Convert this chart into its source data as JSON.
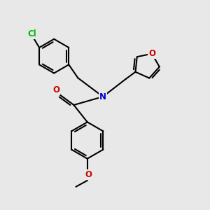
{
  "background_color": "#e8e8e8",
  "bond_color": "#000000",
  "atom_colors": {
    "Cl": "#00bb00",
    "O": "#cc0000",
    "N": "#0000cc",
    "C": "#000000"
  },
  "bond_width": 1.5,
  "figsize": [
    3.0,
    3.0
  ],
  "dpi": 100,
  "xlim": [
    0.0,
    10.0
  ],
  "ylim": [
    0.0,
    10.0
  ]
}
